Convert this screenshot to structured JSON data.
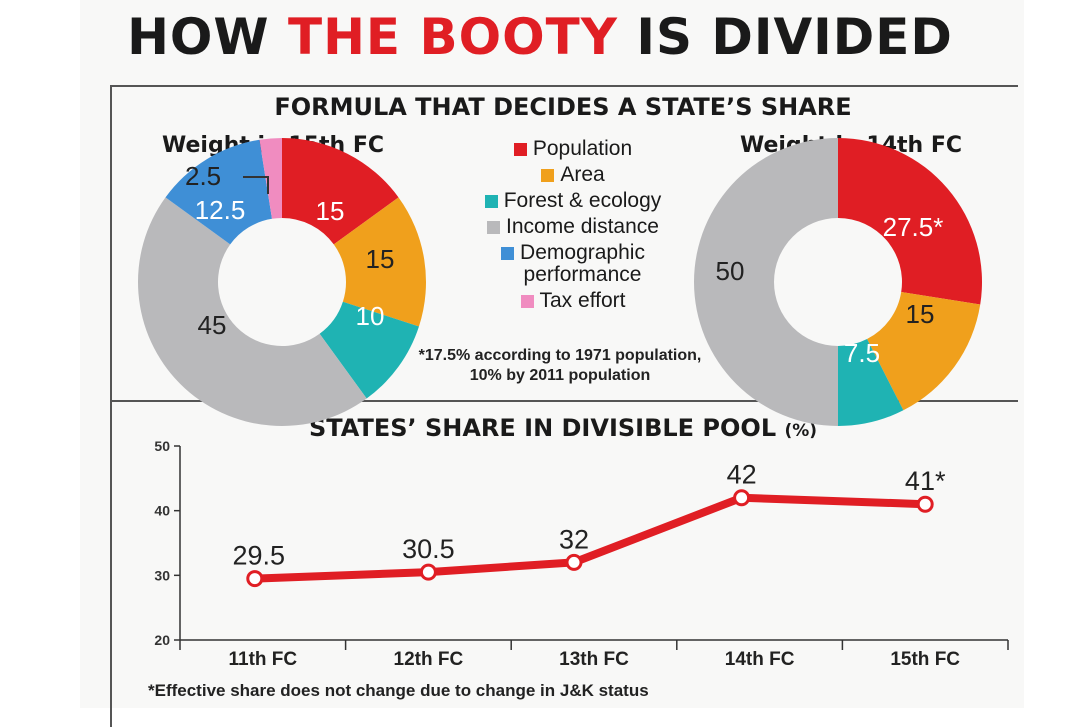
{
  "header": {
    "title_part1": "HOW ",
    "title_part2": "THE BOOTY",
    "title_part3": " IS DIVIDED"
  },
  "formula_section": {
    "title": "FORMULA THAT DECIDES A STATE’S SHARE",
    "note_line1": "*17.5% according to 1971 population,",
    "note_line2": "10% by 2011 population"
  },
  "legend": [
    {
      "label": "Population",
      "color": "#e01e24"
    },
    {
      "label": "Area",
      "color": "#f0a01c"
    },
    {
      "label": "Forest & ecology",
      "color": "#1fb3b3"
    },
    {
      "label": "Income distance",
      "color": "#b9b9bb"
    },
    {
      "label": "Demographic\nperformance",
      "color": "#3f8fd6"
    },
    {
      "label": "Tax effort",
      "color": "#f08cc0"
    }
  ],
  "pool_section": {
    "title": "STATES’ SHARE IN DIVISIBLE POOL",
    "unit": "(%)"
  },
  "footnote": "*Effective share does not change due to change in J&K status",
  "chart_data": [
    {
      "type": "pie",
      "title": "Weight in 15th FC",
      "donut": true,
      "slices": [
        {
          "name": "Population",
          "value": 15,
          "label": "15",
          "color": "#e01e24"
        },
        {
          "name": "Area",
          "value": 15,
          "label": "15",
          "color": "#f0a01c"
        },
        {
          "name": "Forest & ecology",
          "value": 10,
          "label": "10",
          "color": "#1fb3b3"
        },
        {
          "name": "Income distance",
          "value": 45,
          "label": "45",
          "color": "#b9b9bb"
        },
        {
          "name": "Demographic performance",
          "value": 12.5,
          "label": "12.5",
          "color": "#3f8fd6"
        },
        {
          "name": "Tax effort",
          "value": 2.5,
          "label": "2.5",
          "color": "#f08cc0"
        }
      ]
    },
    {
      "type": "pie",
      "title": "Weight in 14th FC",
      "donut": true,
      "slices": [
        {
          "name": "Population",
          "value": 27.5,
          "label": "27.5*",
          "color": "#e01e24"
        },
        {
          "name": "Area",
          "value": 15,
          "label": "15",
          "color": "#f0a01c"
        },
        {
          "name": "Forest & ecology",
          "value": 7.5,
          "label": "7.5",
          "color": "#1fb3b3"
        },
        {
          "name": "Income distance",
          "value": 50,
          "label": "50",
          "color": "#b9b9bb"
        }
      ]
    },
    {
      "type": "line",
      "title": "STATES’ SHARE IN DIVISIBLE POOL (%)",
      "categories": [
        "11th FC",
        "12th FC",
        "13th FC",
        "14th FC",
        "15th FC"
      ],
      "values": [
        29.5,
        30.5,
        32,
        42,
        41
      ],
      "labels": [
        "29.5",
        "30.5",
        "32",
        "42",
        "41*"
      ],
      "ylim": [
        20,
        50
      ],
      "yticks": [
        20,
        30,
        40,
        50
      ],
      "line_color": "#e01e24",
      "grid": false
    }
  ]
}
